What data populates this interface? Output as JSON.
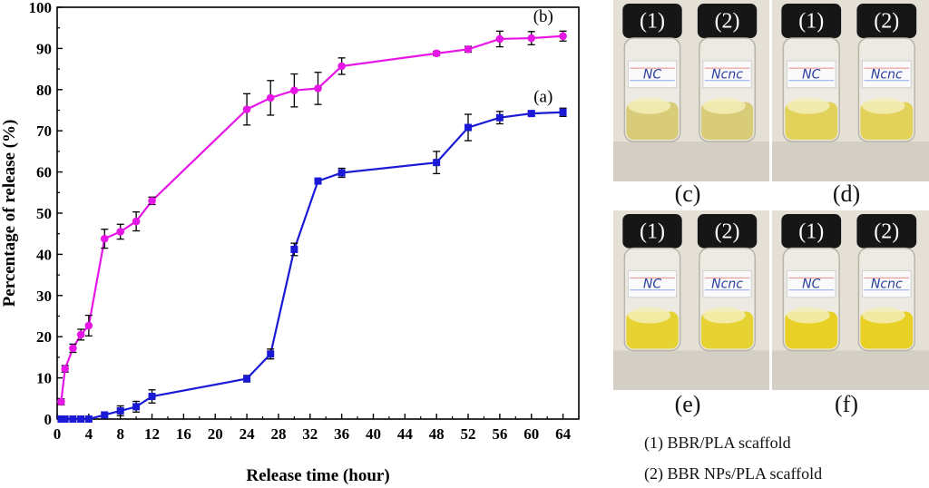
{
  "chart_data": {
    "type": "line",
    "xlabel": "Release time (hour)",
    "ylabel": "Percentage of release (%)",
    "xlim": [
      0,
      66
    ],
    "ylim": [
      0,
      100
    ],
    "xticks": [
      0,
      4,
      8,
      12,
      16,
      20,
      24,
      28,
      32,
      36,
      40,
      44,
      48,
      52,
      56,
      60,
      64
    ],
    "xtick_labels": [
      "0",
      "4",
      "8",
      "12",
      "16",
      "20",
      "24",
      "28",
      "32",
      "36",
      "40",
      "44",
      "48",
      "52",
      "56",
      "60",
      "64"
    ],
    "yticks": [
      0,
      10,
      20,
      30,
      40,
      50,
      60,
      70,
      80,
      90,
      100
    ],
    "ytick_labels": [
      "0",
      "10",
      "20",
      "30",
      "40",
      "50",
      "60",
      "70",
      "80",
      "90",
      "100"
    ],
    "series": [
      {
        "name": "(a)",
        "color": "#1a1ad6",
        "marker": "square",
        "x": [
          0.5,
          1,
          2,
          3,
          4,
          6,
          8,
          10,
          12,
          24,
          27,
          30,
          33,
          36,
          48,
          52,
          56,
          60,
          64
        ],
        "values": [
          0,
          0,
          0,
          0,
          0,
          1,
          2,
          3,
          5.5,
          9.8,
          15.8,
          41.2,
          57.8,
          59.8,
          62.3,
          70.8,
          73.2,
          74.2,
          74.5
        ],
        "errors": [
          0.3,
          0.3,
          0.3,
          0.3,
          0.3,
          0.5,
          1.2,
          1.3,
          1.6,
          0.8,
          1.2,
          1.5,
          0.5,
          1.1,
          2.7,
          3.2,
          1.5,
          0.5,
          1.0
        ]
      },
      {
        "name": "(b)",
        "color": "#e617e6",
        "marker": "circle",
        "x": [
          0.5,
          1,
          2,
          3,
          4,
          6,
          8,
          10,
          12,
          24,
          27,
          30,
          33,
          36,
          48,
          52,
          56,
          60,
          64
        ],
        "values": [
          4.2,
          12.2,
          17.2,
          20.5,
          22.7,
          43.8,
          45.5,
          48.0,
          53.0,
          75.2,
          78.0,
          79.8,
          80.3,
          85.7,
          88.8,
          89.8,
          92.3,
          92.5,
          93.0
        ],
        "errors": [
          0.7,
          0.8,
          1.0,
          1.3,
          2.5,
          2.3,
          1.8,
          2.3,
          0.9,
          3.8,
          4.2,
          4.0,
          3.9,
          2.0,
          0.5,
          0.7,
          1.9,
          1.6,
          1.2
        ]
      }
    ],
    "annotations": [
      {
        "text": "(a)",
        "x": 61.5,
        "y": 77
      },
      {
        "text": "(b)",
        "x": 61.5,
        "y": 96.5
      }
    ]
  },
  "photos": {
    "panels": [
      {
        "label": "(c)",
        "vial_labels": [
          "(1)",
          "(2)"
        ],
        "tag_texts": [
          "NC",
          "Ncnc"
        ],
        "liquid_color": "#d8cc78"
      },
      {
        "label": "(d)",
        "vial_labels": [
          "(1)",
          "(2)"
        ],
        "tag_texts": [
          "NC",
          "Ncnc"
        ],
        "liquid_color": "#e2d25a"
      },
      {
        "label": "(e)",
        "vial_labels": [
          "(1)",
          "(2)"
        ],
        "tag_texts": [
          "NC",
          "Ncnc"
        ],
        "liquid_color": "#e6d232"
      },
      {
        "label": "(f)",
        "vial_labels": [
          "(1)",
          "(2)"
        ],
        "tag_texts": [
          "NC",
          "Ncnc"
        ],
        "liquid_color": "#e8d024"
      }
    ]
  },
  "legend": {
    "item1": "(1) BBR/PLA  scaffold",
    "item2": "(2) BBR  NPs/PLA scaffold"
  }
}
